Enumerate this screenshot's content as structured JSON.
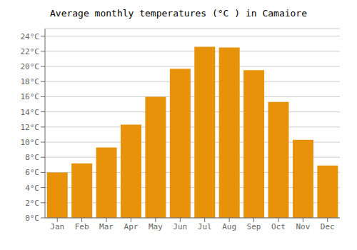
{
  "chart_data": {
    "type": "bar",
    "title": "Average monthly temperatures (°C ) in Camaiore",
    "categories": [
      "Jan",
      "Feb",
      "Mar",
      "Apr",
      "May",
      "Jun",
      "Jul",
      "Aug",
      "Sep",
      "Oct",
      "Nov",
      "Dec"
    ],
    "values": [
      6.0,
      7.2,
      9.3,
      12.3,
      16.0,
      19.7,
      22.6,
      22.5,
      19.5,
      15.3,
      10.3,
      6.9
    ],
    "color": "#E8920A",
    "ylim": [
      0,
      25
    ],
    "yticks": [
      {
        "value": 0,
        "label": "0°C"
      },
      {
        "value": 2,
        "label": "2°C"
      },
      {
        "value": 4,
        "label": "4°C"
      },
      {
        "value": 6,
        "label": "6°C"
      },
      {
        "value": 8,
        "label": "8°C"
      },
      {
        "value": 10,
        "label": "10°C"
      },
      {
        "value": 12,
        "label": "12°C"
      },
      {
        "value": 14,
        "label": "14°C"
      },
      {
        "value": 16,
        "label": "16°C"
      },
      {
        "value": 18,
        "label": "18°C"
      },
      {
        "value": 20,
        "label": "20°C"
      },
      {
        "value": 22,
        "label": "22°C"
      },
      {
        "value": 24,
        "label": "24°C"
      }
    ],
    "grid": true
  }
}
